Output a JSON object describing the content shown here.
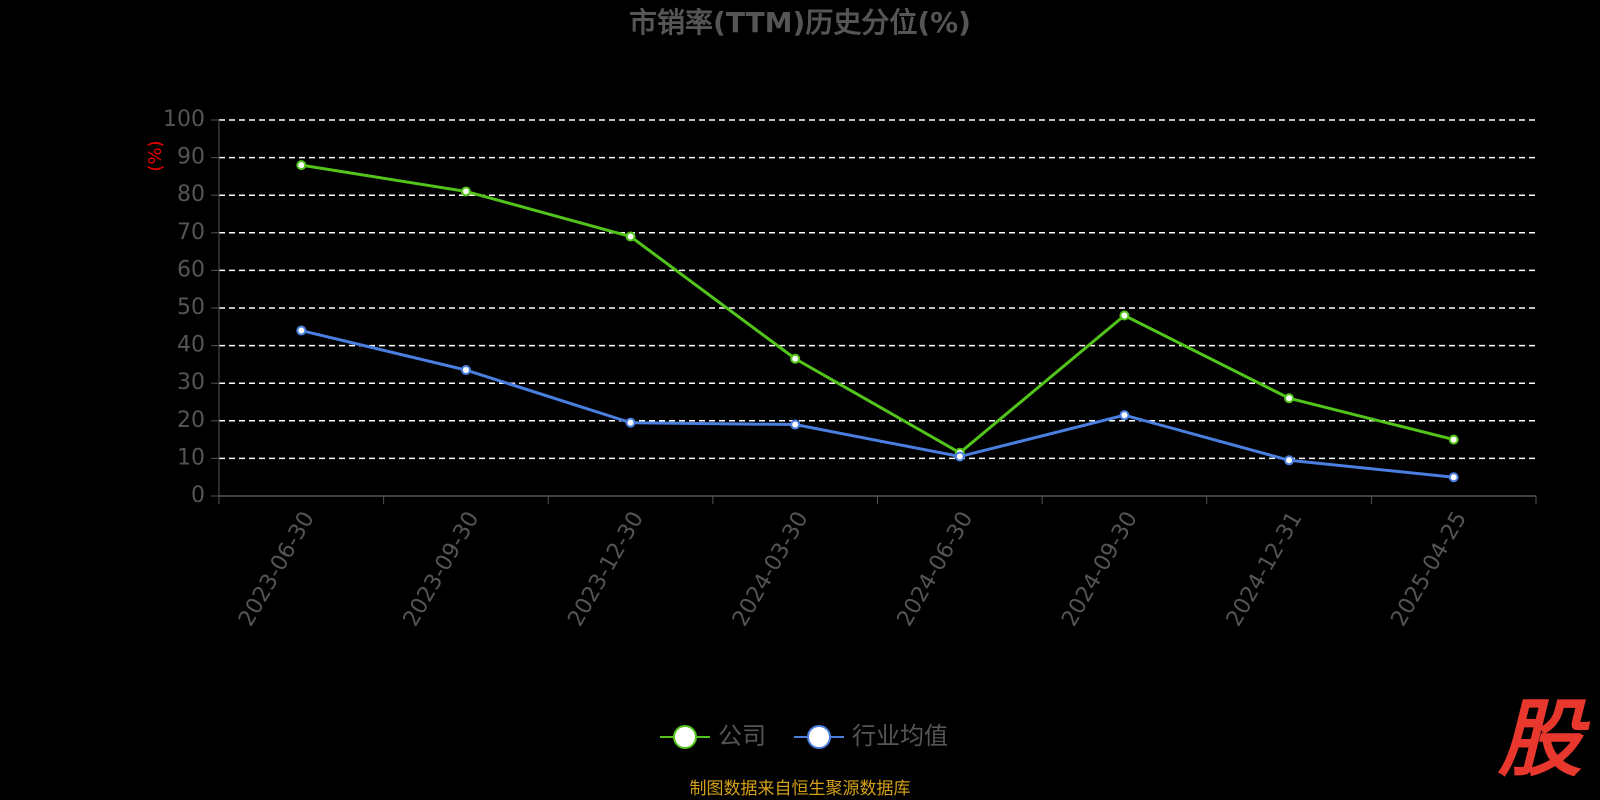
{
  "chart_data": {
    "type": "line",
    "title": "市销率(TTM)历史分位(%)",
    "y_label": "(%)",
    "categories": [
      "2023-06-30",
      "2023-09-30",
      "2023-12-30",
      "2024-03-30",
      "2024-06-30",
      "2024-09-30",
      "2024-12-31",
      "2025-04-25"
    ],
    "series": [
      {
        "name": "公司",
        "color": "#52c41a",
        "values": [
          88,
          81,
          69,
          36.5,
          11.5,
          48,
          26,
          15
        ]
      },
      {
        "name": "行业均值",
        "color": "#4a7fe0",
        "values": [
          44,
          33.5,
          19.5,
          19,
          10.5,
          21.5,
          9.5,
          5
        ]
      }
    ],
    "ylim": [
      0,
      100
    ],
    "yticks": [
      0,
      10,
      20,
      30,
      40,
      50,
      60,
      70,
      80,
      90,
      100
    ],
    "grid": true,
    "legend": "bottom",
    "source": "制图数据来自恒生聚源数据库",
    "logo": "股"
  }
}
